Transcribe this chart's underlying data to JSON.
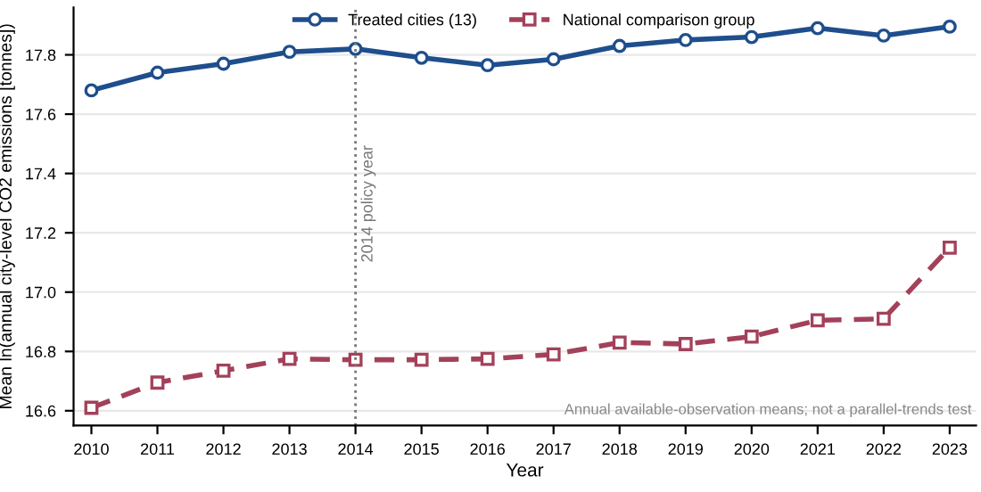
{
  "chart_data": {
    "type": "line",
    "xlabel": "Year",
    "ylabel": "Mean ln(annual city-level CO2 emissions [tonnes])",
    "x": [
      2010,
      2011,
      2012,
      2013,
      2014,
      2015,
      2016,
      2017,
      2018,
      2019,
      2020,
      2021,
      2022,
      2023
    ],
    "series": [
      {
        "name": "Treated cities (13)",
        "color": "#1f4e8c",
        "marker": "circle",
        "line_style": "solid",
        "values": [
          17.68,
          17.74,
          17.77,
          17.81,
          17.82,
          17.79,
          17.765,
          17.785,
          17.83,
          17.85,
          17.86,
          17.89,
          17.865,
          17.895
        ]
      },
      {
        "name": "National comparison group",
        "color": "#a3415a",
        "marker": "square",
        "line_style": "dashed",
        "values": [
          16.61,
          16.695,
          16.735,
          16.775,
          16.772,
          16.772,
          16.775,
          16.79,
          16.83,
          16.825,
          16.85,
          16.905,
          16.91,
          17.15
        ]
      }
    ],
    "xlim": [
      2009.73,
      2023.4
    ],
    "ylim": [
      16.55,
      17.96
    ],
    "xticks": [
      2010,
      2011,
      2012,
      2013,
      2014,
      2015,
      2016,
      2017,
      2018,
      2019,
      2020,
      2021,
      2022,
      2023
    ],
    "yticks": [
      16.6,
      16.8,
      {
        "value": 17.0,
        "label": "17.0"
      },
      17.2,
      17.4,
      17.6,
      17.8
    ],
    "ref_lines": [
      {
        "axis": "x",
        "value": 2014,
        "label": "2014 policy year",
        "color": "#777777",
        "line_style": "dotted"
      }
    ],
    "annotations": [
      "Annual available-observation means; not a parallel-trends test"
    ],
    "grid": "y",
    "legend": "top"
  }
}
